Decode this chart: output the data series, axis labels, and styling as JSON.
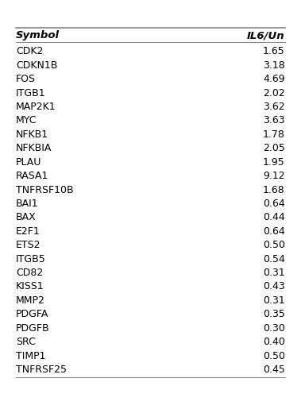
{
  "col1_header": "Symbol",
  "col2_header": "IL6/Un",
  "rows": [
    [
      "CDK2",
      "1.65"
    ],
    [
      "CDKN1B",
      "3.18"
    ],
    [
      "FOS",
      "4.69"
    ],
    [
      "ITGB1",
      "2.02"
    ],
    [
      "MAP2K1",
      "3.62"
    ],
    [
      "MYC",
      "3.63"
    ],
    [
      "NFKB1",
      "1.78"
    ],
    [
      "NFKBIA",
      "2.05"
    ],
    [
      "PLAU",
      "1.95"
    ],
    [
      "RASA1",
      "9.12"
    ],
    [
      "TNFRSF10B",
      "1.68"
    ],
    [
      "BAI1",
      "0.64"
    ],
    [
      "BAX",
      "0.44"
    ],
    [
      "E2F1",
      "0.64"
    ],
    [
      "ETS2",
      "0.50"
    ],
    [
      "ITGB5",
      "0.54"
    ],
    [
      "CD82",
      "0.31"
    ],
    [
      "KISS1",
      "0.43"
    ],
    [
      "MMP2",
      "0.31"
    ],
    [
      "PDGFA",
      "0.35"
    ],
    [
      "PDGFB",
      "0.30"
    ],
    [
      "SRC",
      "0.40"
    ],
    [
      "TIMP1",
      "0.50"
    ],
    [
      "TNFRSF25",
      "0.45"
    ]
  ],
  "bg_color": "#ffffff",
  "header_line_color": "#888888",
  "text_color": "#000000",
  "fig_width": 3.79,
  "fig_height": 5.15,
  "dpi": 100
}
